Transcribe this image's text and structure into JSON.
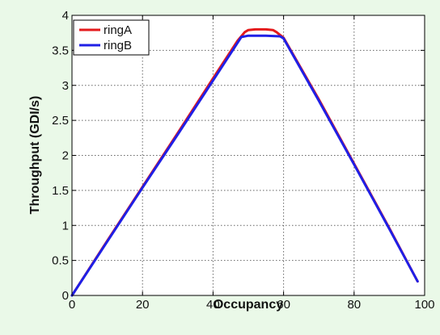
{
  "chart_data": {
    "type": "line",
    "xlabel": "Occupancy",
    "ylabel": "Throughput (GDI/s)",
    "xlim": [
      0,
      100
    ],
    "ylim": [
      0,
      4
    ],
    "xticks": [
      0,
      20,
      40,
      60,
      80,
      100
    ],
    "yticks": [
      0,
      0.5,
      1,
      1.5,
      2,
      2.5,
      3,
      3.5,
      4
    ],
    "xtick_labels": [
      "0",
      "20",
      "40",
      "60",
      "80",
      "100"
    ],
    "ytick_labels": [
      "0",
      "0.5",
      "1",
      "1.5",
      "2",
      "2.5",
      "3",
      "3.5",
      "4"
    ],
    "grid": true,
    "legend_position": "top-left",
    "series": [
      {
        "name": "ringA",
        "color": "#e41a1c",
        "x": [
          0,
          10,
          20,
          30,
          40,
          47,
          49,
          50,
          52,
          55,
          57,
          58,
          60,
          70,
          80,
          90,
          98
        ],
        "y": [
          0,
          0.78,
          1.55,
          2.32,
          3.1,
          3.64,
          3.76,
          3.79,
          3.8,
          3.8,
          3.79,
          3.76,
          3.68,
          2.8,
          1.88,
          0.96,
          0.2
        ]
      },
      {
        "name": "ringB",
        "color": "#1f1fe6",
        "x": [
          0,
          10,
          20,
          30,
          40,
          48,
          50,
          55,
          59,
          60,
          70,
          80,
          90,
          98
        ],
        "y": [
          0,
          0.77,
          1.54,
          2.3,
          3.07,
          3.69,
          3.71,
          3.71,
          3.7,
          3.67,
          2.78,
          1.87,
          0.95,
          0.2
        ]
      }
    ]
  }
}
